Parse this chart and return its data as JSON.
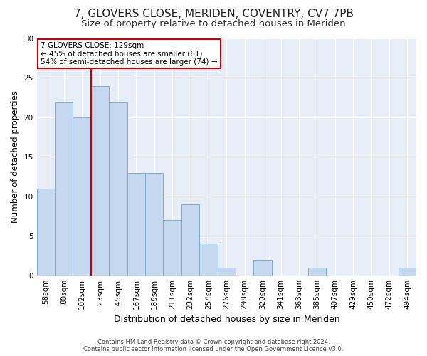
{
  "title": "7, GLOVERS CLOSE, MERIDEN, COVENTRY, CV7 7PB",
  "subtitle": "Size of property relative to detached houses in Meriden",
  "xlabel": "Distribution of detached houses by size in Meriden",
  "ylabel": "Number of detached properties",
  "footer_line1": "Contains HM Land Registry data © Crown copyright and database right 2024.",
  "footer_line2": "Contains public sector information licensed under the Open Government Licence v3.0.",
  "bin_labels": [
    "58sqm",
    "80sqm",
    "102sqm",
    "123sqm",
    "145sqm",
    "167sqm",
    "189sqm",
    "211sqm",
    "232sqm",
    "254sqm",
    "276sqm",
    "298sqm",
    "320sqm",
    "341sqm",
    "363sqm",
    "385sqm",
    "407sqm",
    "429sqm",
    "450sqm",
    "472sqm",
    "494sqm"
  ],
  "bar_values": [
    11,
    22,
    20,
    24,
    22,
    13,
    13,
    7,
    9,
    4,
    1,
    0,
    2,
    0,
    0,
    1,
    0,
    0,
    0,
    0,
    1
  ],
  "bar_color": "#c5d8f0",
  "bar_edge_color": "#7bafd4",
  "fig_bg_color": "#ffffff",
  "plot_bg_color": "#e8eef8",
  "grid_color": "#ffffff",
  "annotation_box_text": "7 GLOVERS CLOSE: 129sqm\n← 45% of detached houses are smaller (61)\n54% of semi-detached houses are larger (74) →",
  "annotation_box_facecolor": "#ffffff",
  "annotation_box_edgecolor": "#cc0000",
  "red_line_x": 2.5,
  "red_line_color": "#cc0000",
  "ylim": [
    0,
    30
  ],
  "yticks": [
    0,
    5,
    10,
    15,
    20,
    25,
    30
  ],
  "title_fontsize": 11,
  "subtitle_fontsize": 9.5,
  "xlabel_fontsize": 9,
  "ylabel_fontsize": 8.5,
  "tick_fontsize": 7.5,
  "annot_fontsize": 7.5,
  "footer_fontsize": 6
}
